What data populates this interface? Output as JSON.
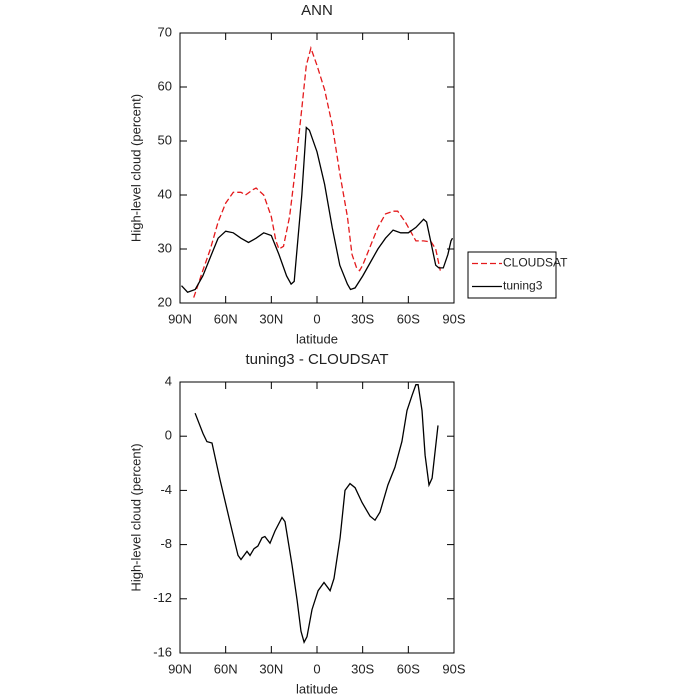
{
  "chart_data": [
    {
      "type": "line",
      "title": "ANN",
      "x_label": "latitude",
      "y_label": "High-level cloud (percent)",
      "xlim": [
        90,
        -90
      ],
      "xticks": [
        {
          "value": 90,
          "label": "90N"
        },
        {
          "value": 60,
          "label": "60N"
        },
        {
          "value": 30,
          "label": "30N"
        },
        0,
        {
          "value": -30,
          "label": "30S"
        },
        {
          "value": -60,
          "label": "60S"
        },
        {
          "value": -90,
          "label": "90S"
        }
      ],
      "ylim": [
        20,
        70
      ],
      "yticks": [
        20,
        30,
        40,
        50,
        60,
        70
      ],
      "legend": "right",
      "series": [
        {
          "name": "CLOUDSAT",
          "color": "#e41a1c",
          "line_style": "dashed",
          "x": [
            81,
            78,
            75,
            70,
            65,
            60,
            55,
            50,
            47,
            42,
            40,
            35,
            30,
            27,
            25,
            22,
            18,
            15,
            10,
            7,
            4,
            0,
            -5,
            -10,
            -15,
            -20,
            -23,
            -26,
            -28,
            -30,
            -35,
            -40,
            -45,
            -50,
            -53,
            -58,
            -62,
            -65,
            -70,
            -75,
            -78,
            -81
          ],
          "values": [
            21,
            23.5,
            26,
            30,
            35,
            38.5,
            40.5,
            40.5,
            40,
            41,
            41.3,
            40,
            36,
            31.5,
            30,
            30.5,
            36,
            43,
            56,
            64,
            67.2,
            64,
            59.5,
            53,
            44,
            36,
            29,
            26.5,
            26,
            27,
            30.5,
            34,
            36.5,
            37,
            37,
            35,
            33,
            31.5,
            31.5,
            31.3,
            30,
            26
          ]
        },
        {
          "name": "tuning3",
          "color": "#000000",
          "line_style": "solid",
          "x": [
            89,
            85,
            80,
            75,
            70,
            65,
            60,
            55,
            50,
            45,
            40,
            35,
            30,
            25,
            20,
            17,
            15,
            10,
            7,
            5,
            0,
            -5,
            -10,
            -15,
            -20,
            -22,
            -25,
            -30,
            -35,
            -40,
            -45,
            -50,
            -55,
            -60,
            -65,
            -70,
            -72,
            -75,
            -78,
            -80,
            -83,
            -86,
            -88,
            -89
          ],
          "values": [
            23.2,
            22,
            22.5,
            25,
            28.5,
            32,
            33.3,
            33,
            32,
            31.2,
            32,
            33,
            32.5,
            29,
            25,
            23.5,
            24,
            40,
            52.5,
            52,
            48,
            42,
            34,
            27,
            23.5,
            22.5,
            22.8,
            25,
            27.5,
            30,
            32,
            33.5,
            33,
            33,
            34,
            35.5,
            35,
            31,
            27,
            26.5,
            26.5,
            29,
            31.5,
            32
          ]
        }
      ]
    },
    {
      "type": "line",
      "title": "tuning3 - CLOUDSAT",
      "x_label": "latitude",
      "y_label": "High-level cloud (percent)",
      "xlim": [
        90,
        -90
      ],
      "xticks": [
        {
          "value": 90,
          "label": "90N"
        },
        {
          "value": 60,
          "label": "60N"
        },
        {
          "value": 30,
          "label": "30N"
        },
        0,
        {
          "value": -30,
          "label": "30S"
        },
        {
          "value": -60,
          "label": "60S"
        },
        {
          "value": -90,
          "label": "90S"
        }
      ],
      "ylim": [
        -16,
        4
      ],
      "yticks": [
        -16,
        -12,
        -8,
        -4,
        0,
        4
      ],
      "color": "#000000",
      "x": [
        80.1,
        74.9,
        72.3,
        69,
        63.7,
        57.2,
        51.9,
        49.9,
        46,
        44,
        41.4,
        38.8,
        36.1,
        34.2,
        30.9,
        27.6,
        23,
        21,
        16.4,
        13.1,
        10.5,
        8.5,
        6.6,
        3.3,
        -0.7,
        -4.6,
        -8.6,
        -11.2,
        -15.2,
        -18.4,
        -21.7,
        -25,
        -29.6,
        -34.8,
        -38.1,
        -41.4,
        -46.6,
        -51.2,
        -55.8,
        -59.1,
        -62.4,
        -65,
        -66.4,
        -69,
        -71,
        -73.6,
        -75.6,
        -79.5
      ],
      "values": [
        1.7,
        0.2,
        -0.4,
        -0.5,
        -3.2,
        -6.3,
        -8.8,
        -9.1,
        -8.5,
        -8.8,
        -8.3,
        -8.1,
        -7.5,
        -7.4,
        -7.9,
        -7,
        -6,
        -6.3,
        -9.5,
        -12.1,
        -14.4,
        -15.2,
        -14.8,
        -12.8,
        -11.4,
        -10.8,
        -11.4,
        -10.5,
        -7.5,
        -4,
        -3.5,
        -3.8,
        -4.9,
        -5.9,
        -6.2,
        -5.6,
        -3.6,
        -2.3,
        -0.4,
        1.9,
        3,
        3.8,
        3.8,
        1.9,
        -1.4,
        -3.6,
        -3.1,
        0.8
      ]
    }
  ]
}
